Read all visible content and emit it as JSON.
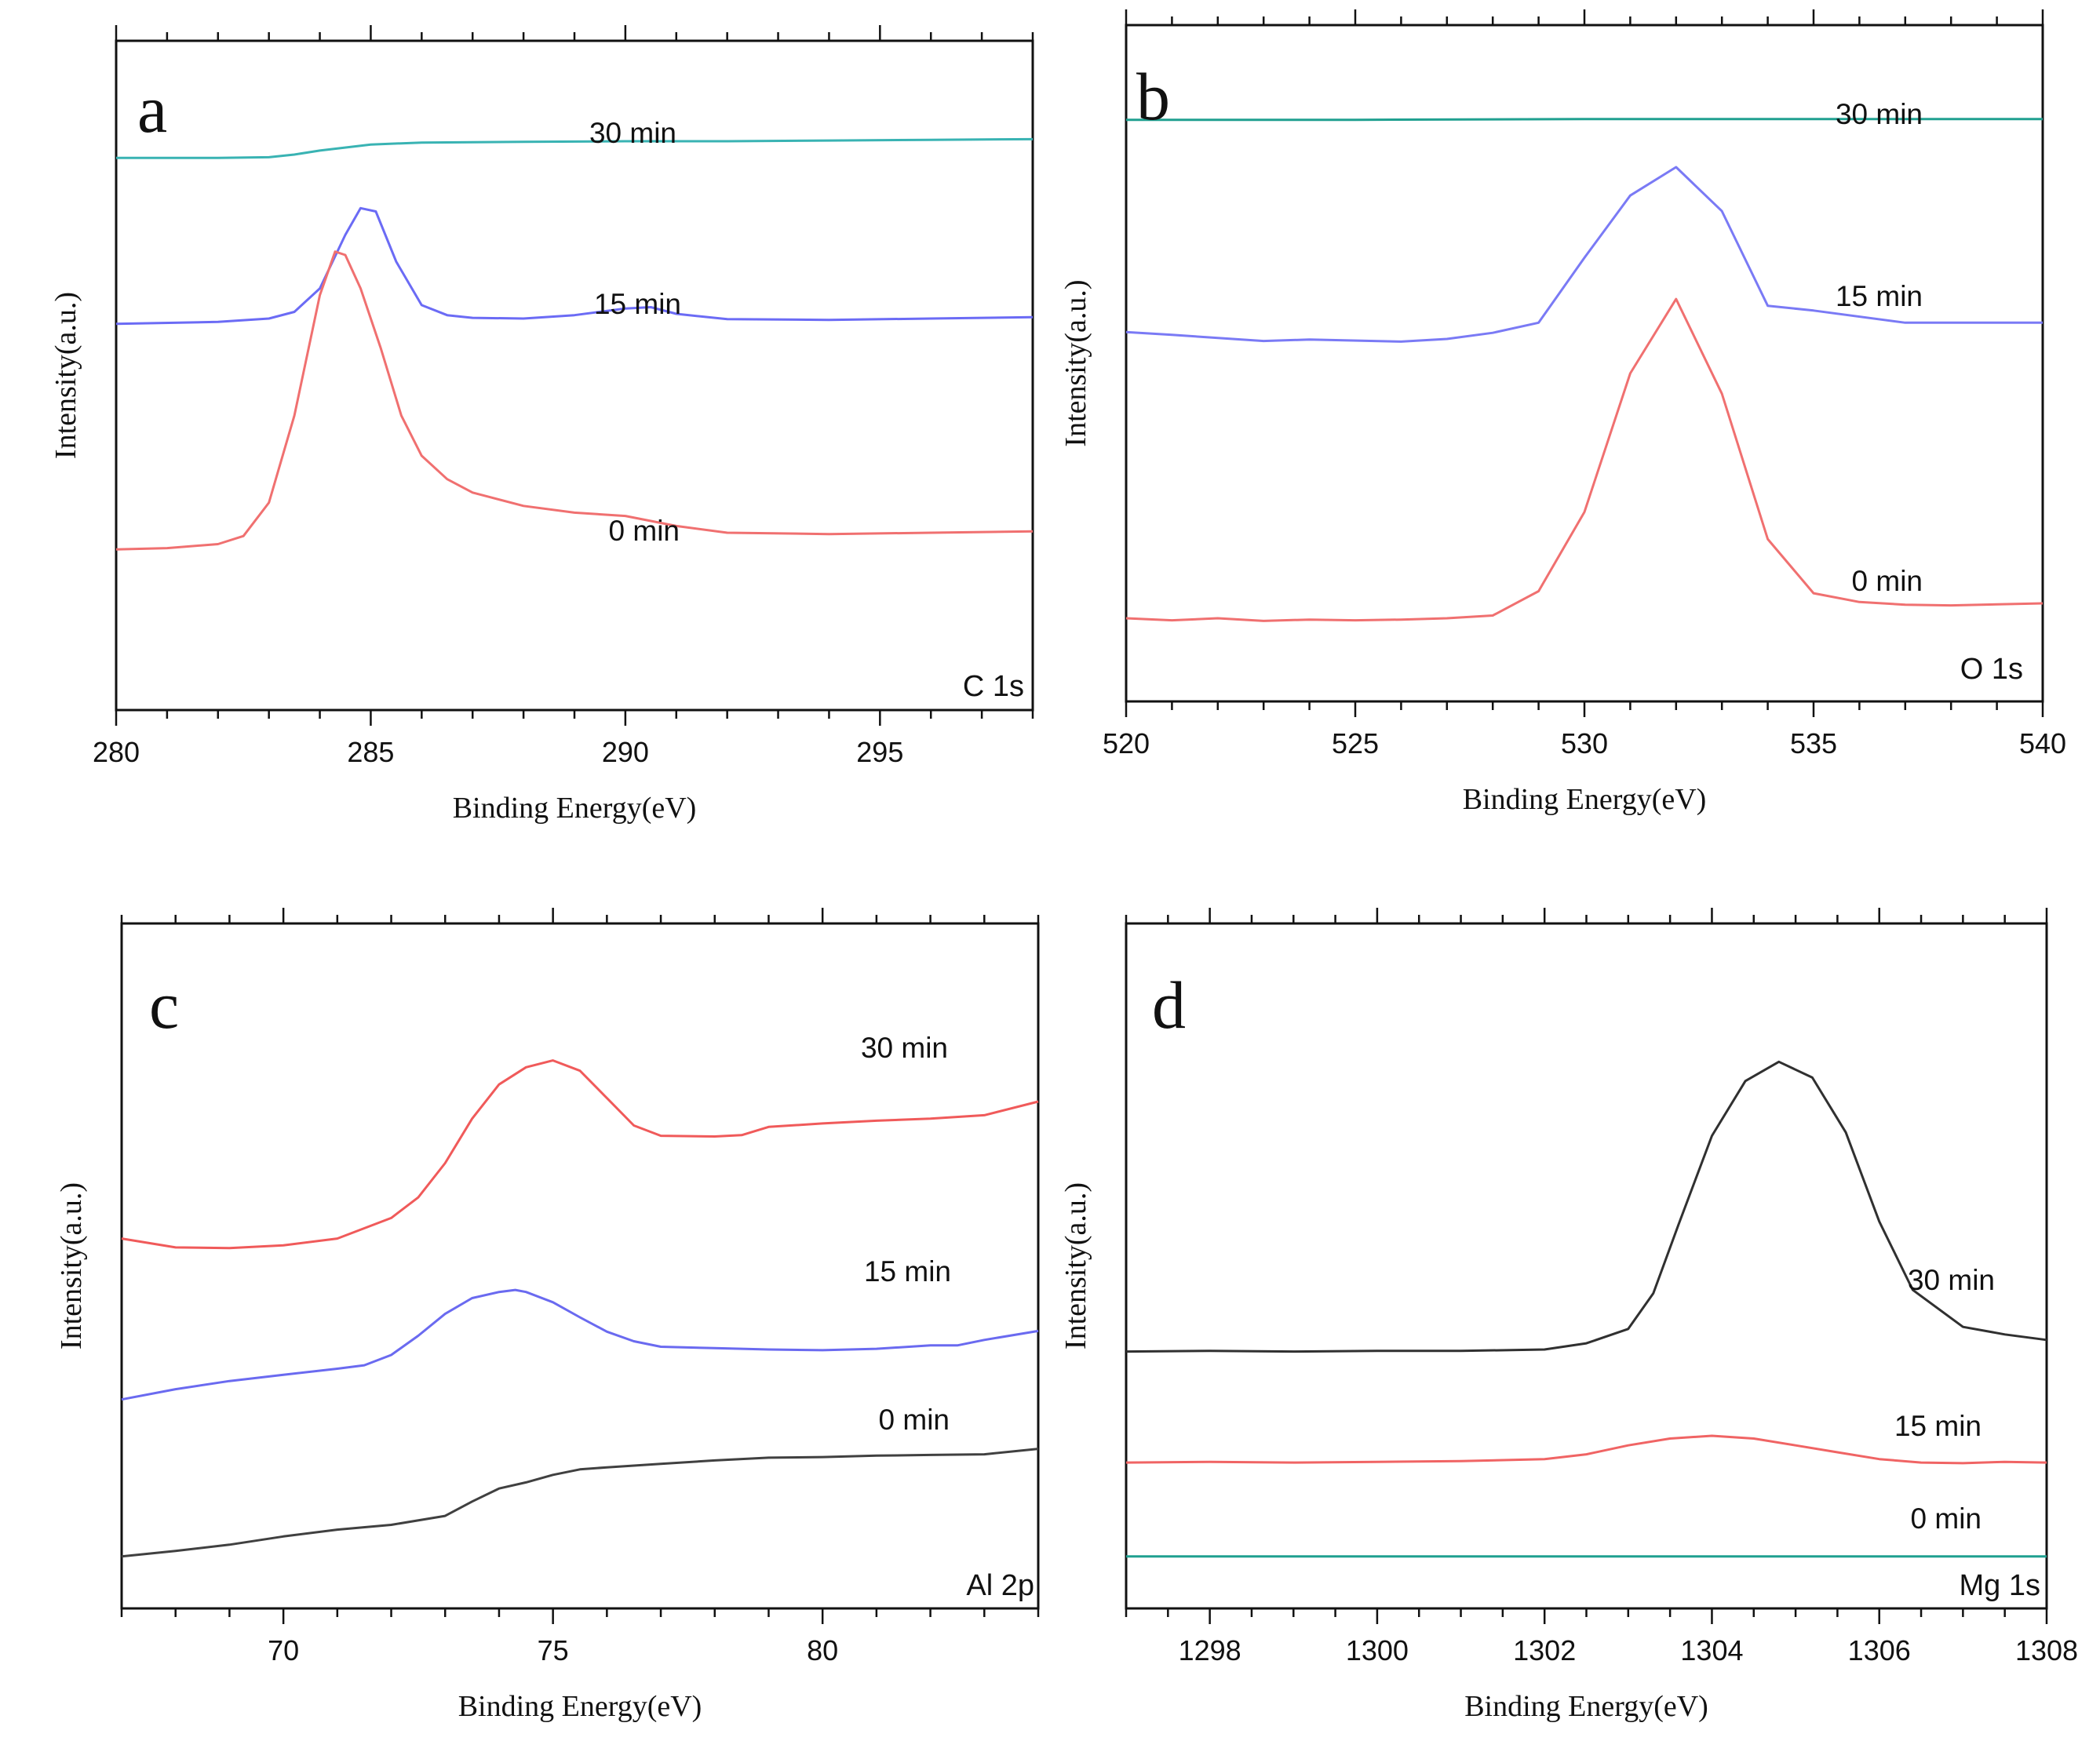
{
  "chart_data": [
    {
      "type": "line",
      "panel_letter": "a",
      "element_label": "C 1s",
      "xlabel": "Binding Energy(eV)",
      "ylabel": "Intensity(a.u.)",
      "xlim": [
        280,
        298
      ],
      "ylim": [
        0,
        100
      ],
      "xticks": [
        280,
        285,
        290,
        295
      ],
      "series": [
        {
          "name": "30 min",
          "color": "#39b3b3",
          "x": [
            280,
            282,
            283,
            283.5,
            284,
            285,
            286,
            288,
            290,
            292,
            294,
            296,
            298
          ],
          "y": [
            82.5,
            82.5,
            82.6,
            83,
            83.6,
            84.5,
            84.8,
            84.9,
            85,
            85,
            85.1,
            85.2,
            85.3
          ]
        },
        {
          "name": "15 min",
          "color": "#6b6bf5",
          "x": [
            280,
            282,
            283,
            283.5,
            284,
            284.5,
            284.8,
            285.1,
            285.5,
            286,
            286.5,
            287,
            288,
            289,
            290,
            290.5,
            291,
            292,
            294,
            296,
            298
          ],
          "y": [
            57.7,
            58,
            58.5,
            59.5,
            63,
            71,
            75,
            74.5,
            67,
            60.5,
            59,
            58.6,
            58.5,
            59,
            60,
            60.2,
            59.2,
            58.4,
            58.3,
            58.5,
            58.7
          ]
        },
        {
          "name": "0 min",
          "color": "#f07070",
          "x": [
            280,
            281,
            282,
            282.5,
            283,
            283.5,
            284,
            284.3,
            284.5,
            284.8,
            285.2,
            285.6,
            286,
            286.5,
            287,
            288,
            289,
            290,
            291,
            292,
            294,
            296,
            298
          ],
          "y": [
            24,
            24.2,
            24.8,
            26,
            31,
            44,
            62,
            68.5,
            68,
            63,
            54,
            44,
            38,
            34.5,
            32.5,
            30.5,
            29.5,
            29,
            27.5,
            26.5,
            26.3,
            26.5,
            26.7
          ]
        }
      ]
    },
    {
      "type": "line",
      "panel_letter": "b",
      "element_label": "O 1s",
      "xlabel": "Binding Energy(eV)",
      "ylabel": "Intensity(a.u.)",
      "xlim": [
        520,
        540
      ],
      "ylim": [
        0,
        100
      ],
      "xticks": [
        520,
        525,
        530,
        535,
        540
      ],
      "series": [
        {
          "name": "30 min",
          "color": "#20a090",
          "x": [
            520,
            525,
            530,
            535,
            540
          ],
          "y": [
            86,
            86,
            86.1,
            86.1,
            86.1
          ]
        },
        {
          "name": "15 min",
          "color": "#7a7af5",
          "x": [
            520,
            521,
            523,
            524,
            526,
            527,
            528,
            529,
            530,
            531,
            532,
            533,
            534,
            535,
            537,
            540
          ],
          "y": [
            54.6,
            54.2,
            53.3,
            53.5,
            53.2,
            53.6,
            54.5,
            56,
            65.6,
            74.8,
            79,
            72.5,
            58.5,
            57.8,
            56,
            56
          ]
        },
        {
          "name": "0 min",
          "color": "#f07070",
          "x": [
            520,
            521,
            522,
            523,
            524,
            525,
            526,
            527,
            528,
            529,
            530,
            531,
            532,
            533,
            534,
            535,
            536,
            537,
            538,
            540
          ],
          "y": [
            12.3,
            12,
            12.3,
            11.9,
            12.1,
            12,
            12.1,
            12.3,
            12.7,
            16.3,
            28,
            48.5,
            59.5,
            45.5,
            24,
            16,
            14.7,
            14.3,
            14.2,
            14.5
          ]
        }
      ]
    },
    {
      "type": "line",
      "panel_letter": "c",
      "element_label": "Al 2p",
      "xlabel": "Binding Energy(eV)",
      "ylabel": "Intensity(a.u.)",
      "xlim": [
        67,
        84
      ],
      "ylim": [
        0,
        100
      ],
      "xticks": [
        70,
        75,
        80
      ],
      "series": [
        {
          "name": "30 min",
          "color": "#f05a5a",
          "x": [
            67,
            68,
            69,
            70,
            71,
            72,
            72.5,
            73,
            73.5,
            74,
            74.5,
            75,
            75.5,
            76,
            76.5,
            77,
            78,
            78.5,
            79,
            80,
            81,
            82,
            83,
            84
          ],
          "y": [
            54,
            52.7,
            52.6,
            53,
            54,
            57,
            60,
            65,
            71.5,
            76.5,
            79,
            80,
            78.5,
            74.5,
            70.5,
            69,
            68.9,
            69.1,
            70.3,
            70.8,
            71.2,
            71.5,
            72,
            74
          ]
        },
        {
          "name": "15 min",
          "color": "#6a6af0",
          "x": [
            67,
            68,
            69,
            70,
            71,
            71.5,
            72,
            72.5,
            73,
            73.5,
            74,
            74.3,
            74.5,
            75,
            75.5,
            76,
            76.5,
            77,
            78,
            79,
            80,
            81,
            82,
            82.5,
            83,
            84
          ],
          "y": [
            30.5,
            32,
            33.2,
            34.1,
            35,
            35.5,
            37,
            39.8,
            43,
            45.3,
            46.2,
            46.5,
            46.2,
            44.7,
            42.5,
            40.4,
            39,
            38.2,
            38,
            37.8,
            37.7,
            37.9,
            38.4,
            38.4,
            39.2,
            40.5
          ]
        },
        {
          "name": "0 min",
          "color": "#404040",
          "x": [
            67,
            68,
            69,
            70,
            71,
            72,
            73,
            73.5,
            74,
            74.5,
            75,
            75.5,
            76,
            77,
            78,
            79,
            80,
            81,
            82,
            83,
            84
          ],
          "y": [
            7.6,
            8.4,
            9.3,
            10.5,
            11.5,
            12.2,
            13.5,
            15.6,
            17.5,
            18.4,
            19.5,
            20.3,
            20.6,
            21.1,
            21.6,
            22,
            22.1,
            22.3,
            22.4,
            22.5,
            23.3
          ]
        }
      ]
    },
    {
      "type": "line",
      "panel_letter": "d",
      "element_label": "Mg 1s",
      "xlabel": "Binding Energy(eV)",
      "ylabel": "Intensity(a.u.)",
      "xlim": [
        1297,
        1308
      ],
      "ylim": [
        0,
        100
      ],
      "xticks": [
        1298,
        1300,
        1302,
        1304,
        1306,
        1308
      ],
      "series": [
        {
          "name": "30 min",
          "color": "#303030",
          "x": [
            1297,
            1298,
            1299,
            1300,
            1301,
            1302,
            1302.5,
            1303,
            1303.3,
            1303.6,
            1304,
            1304.4,
            1304.8,
            1305.2,
            1305.6,
            1306,
            1306.4,
            1307,
            1307.5,
            1308
          ],
          "y": [
            37.5,
            37.6,
            37.5,
            37.6,
            37.6,
            37.8,
            38.7,
            40.8,
            46,
            56,
            69,
            77,
            79.8,
            77.5,
            69.5,
            56.5,
            46.5,
            41.1,
            40,
            39.2
          ]
        },
        {
          "name": "15 min",
          "color": "#f06464",
          "x": [
            1297,
            1298,
            1299,
            1300,
            1301,
            1302,
            1302.5,
            1303,
            1303.5,
            1304,
            1304.5,
            1305,
            1305.5,
            1306,
            1306.5,
            1307,
            1307.5,
            1308
          ],
          "y": [
            21.3,
            21.4,
            21.3,
            21.4,
            21.5,
            21.8,
            22.5,
            23.8,
            24.8,
            25.2,
            24.8,
            23.8,
            22.8,
            21.8,
            21.3,
            21.2,
            21.4,
            21.3
          ]
        },
        {
          "name": "0 min",
          "color": "#20a090",
          "x": [
            1297,
            1300,
            1304,
            1308
          ],
          "y": [
            7.6,
            7.6,
            7.6,
            7.6
          ]
        }
      ]
    }
  ]
}
